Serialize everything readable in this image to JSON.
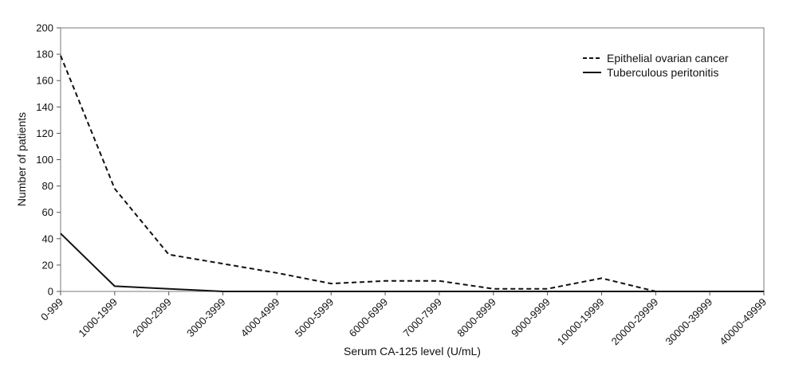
{
  "chart_data": {
    "type": "line",
    "xlabel": "Serum CA-125 level (U/mL)",
    "ylabel": "Number of patients",
    "ylim": [
      0,
      200
    ],
    "yticks": [
      0,
      20,
      40,
      60,
      80,
      100,
      120,
      140,
      160,
      180,
      200
    ],
    "categories": [
      "0-999",
      "1000-1999",
      "2000-2999",
      "3000-3999",
      "4000-4999",
      "5000-5999",
      "6000-6999",
      "7000-7999",
      "8000-8999",
      "9000-9999",
      "10000-19999",
      "20000-29999",
      "30000-39999",
      "40000-49999"
    ],
    "grid": false,
    "legend_position": "top-right",
    "series": [
      {
        "name": "Epithelial ovarian cancer",
        "style": "dashed",
        "color": "#111111",
        "values": [
          179,
          78,
          28,
          21,
          14,
          6,
          8,
          8,
          2,
          2,
          10,
          0,
          0,
          0
        ]
      },
      {
        "name": "Tuberculous peritonitis",
        "style": "solid",
        "color": "#111111",
        "values": [
          44,
          4,
          2,
          0,
          0,
          0,
          0,
          0,
          0,
          0,
          0,
          0,
          0,
          0
        ]
      }
    ]
  }
}
